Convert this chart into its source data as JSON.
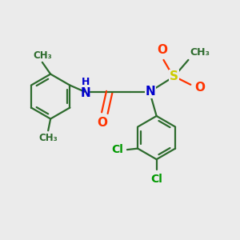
{
  "bg_color": "#ebebeb",
  "bond_color": "#2d6b2d",
  "bond_width": 1.6,
  "atom_colors": {
    "N": "#0000cc",
    "O": "#ff3300",
    "S": "#cccc00",
    "Cl": "#009900",
    "C": "#2d6b2d"
  },
  "font_size": 10,
  "fig_size": [
    3.0,
    3.0
  ],
  "dpi": 100,
  "xlim": [
    0,
    10
  ],
  "ylim": [
    0,
    10
  ]
}
